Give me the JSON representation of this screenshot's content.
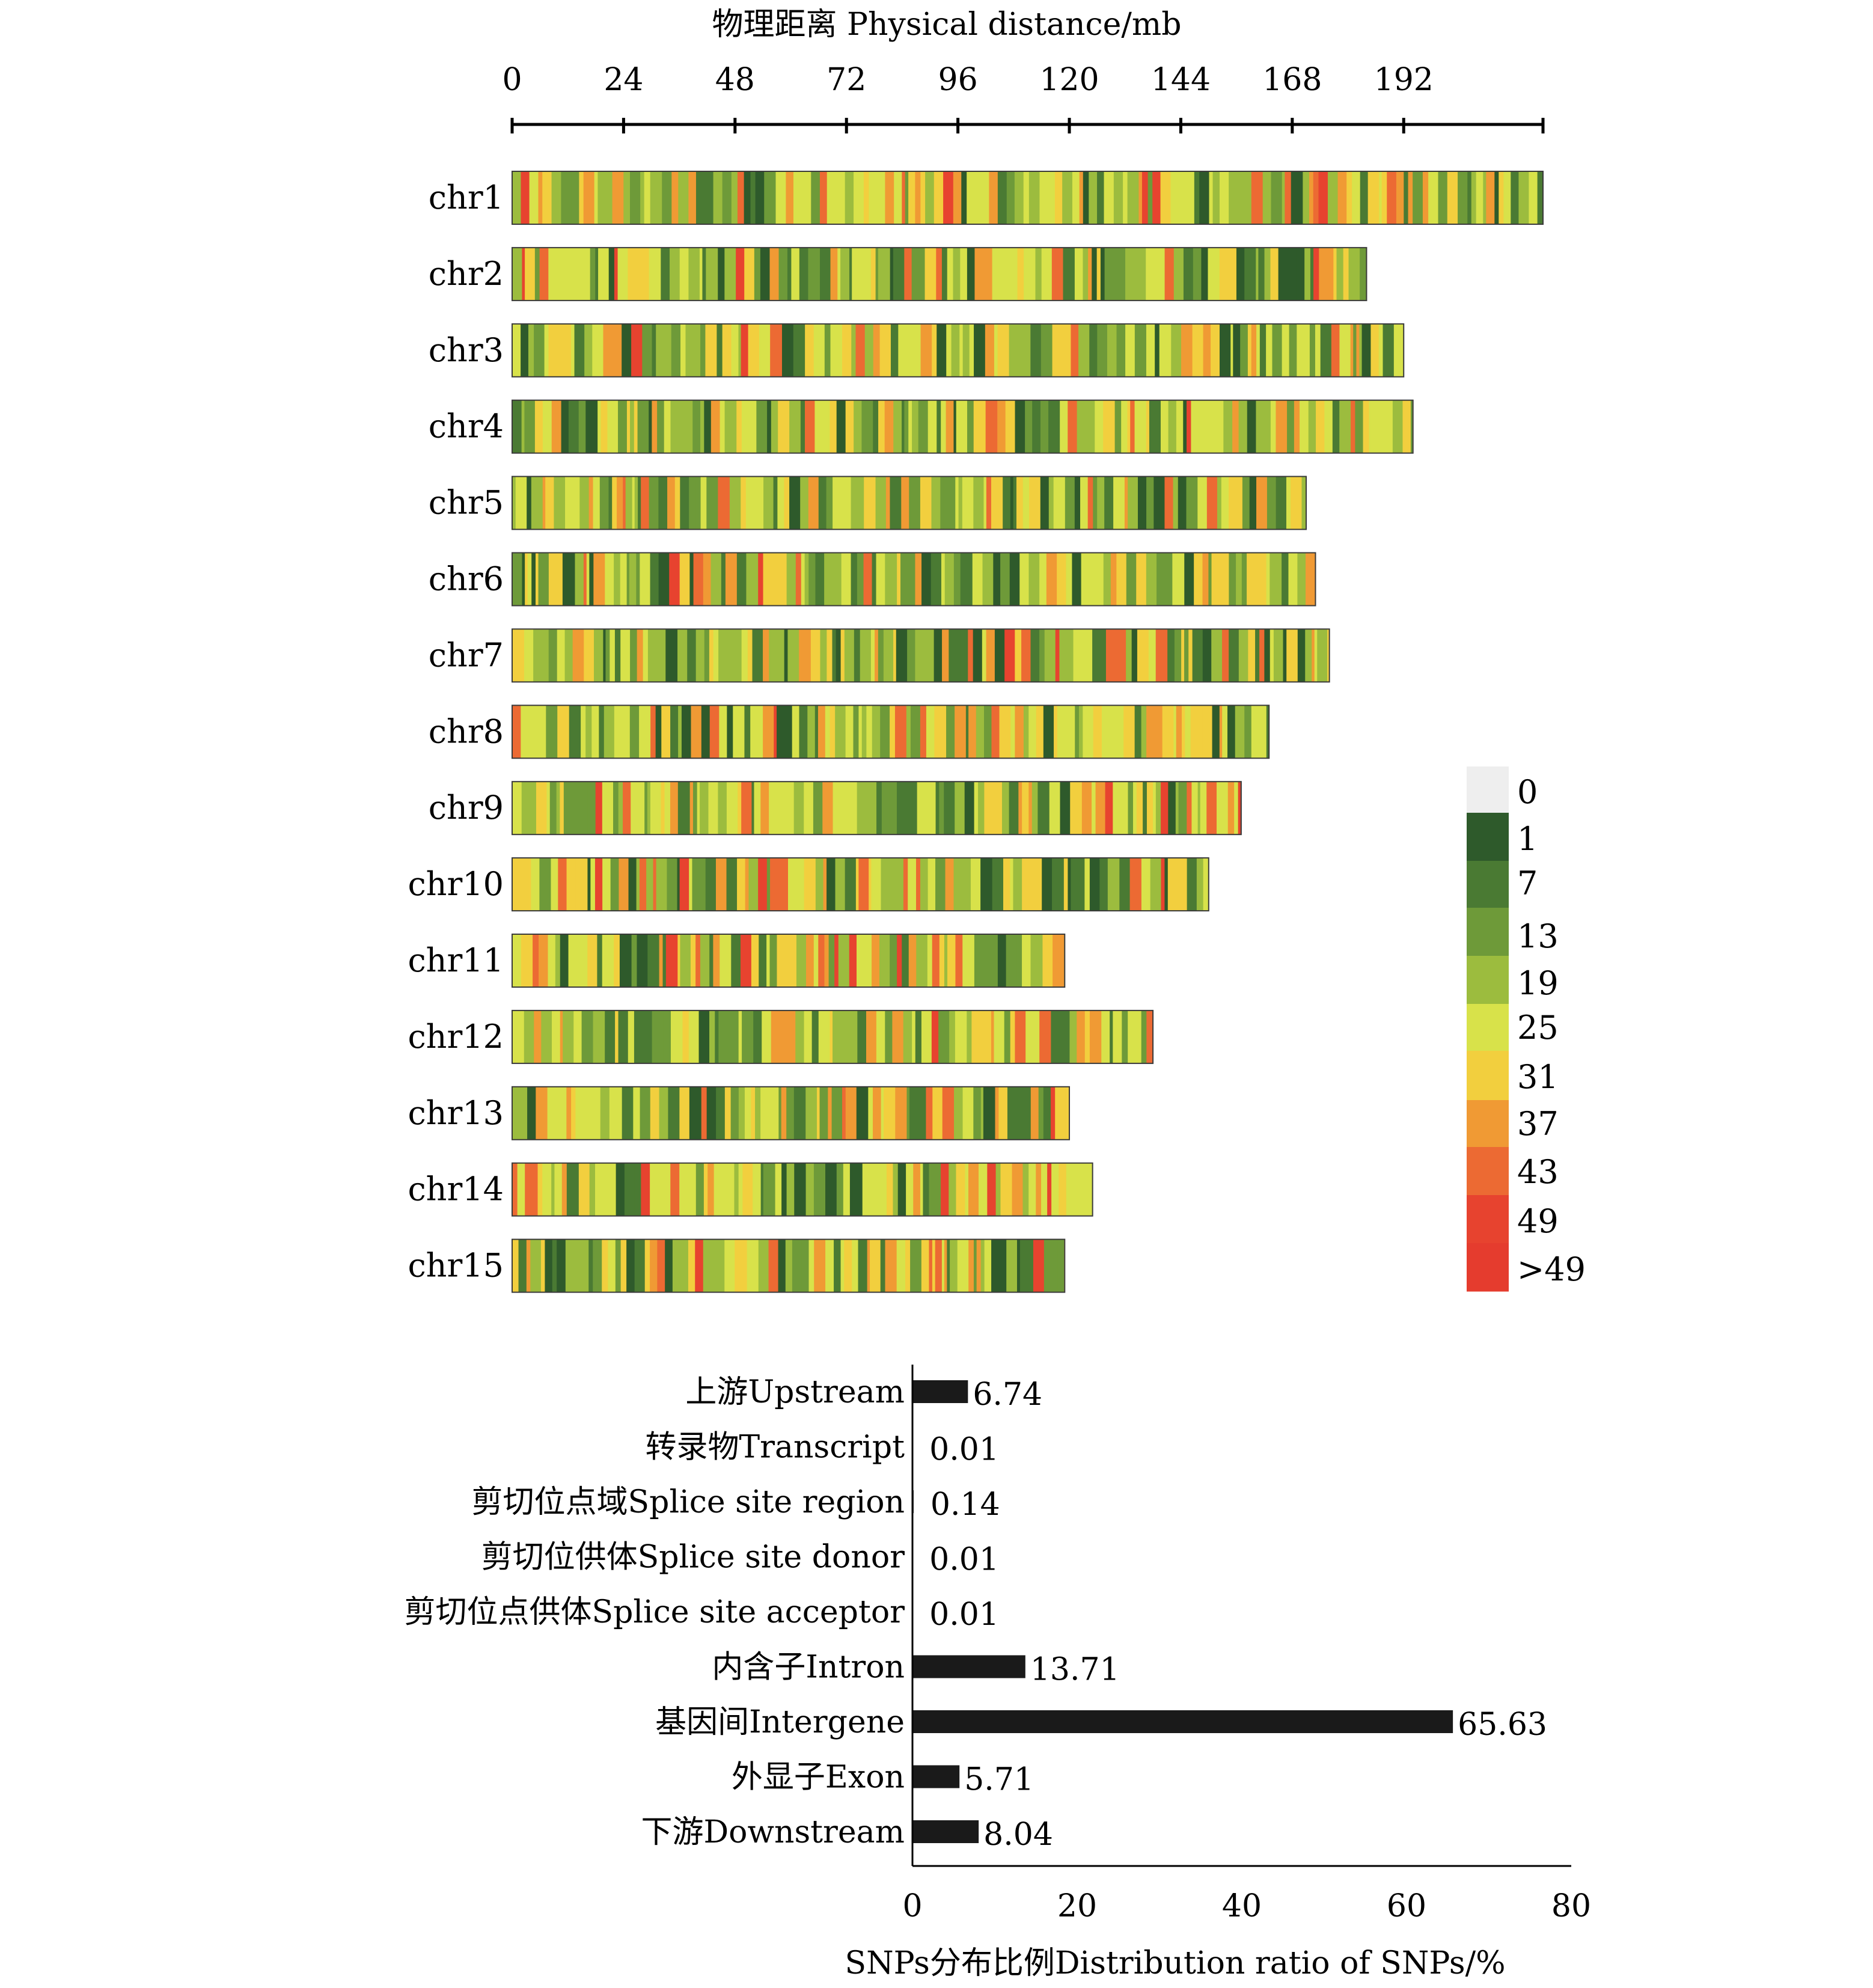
{
  "chart_data": [
    {
      "type": "heatmap",
      "title": "物理距离 Physical distance/mb",
      "xlim": [
        0,
        222
      ],
      "x_ticks": [
        "0",
        "24",
        "48",
        "72",
        "96",
        "120",
        "144",
        "168",
        "192"
      ],
      "x_tick_values": [
        0,
        24,
        48,
        72,
        96,
        120,
        144,
        168,
        192
      ],
      "chromosomes": [
        {
          "name": "chr1",
          "length_mb": 222
        },
        {
          "name": "chr2",
          "length_mb": 184
        },
        {
          "name": "chr3",
          "length_mb": 192
        },
        {
          "name": "chr4",
          "length_mb": 194
        },
        {
          "name": "chr5",
          "length_mb": 171
        },
        {
          "name": "chr6",
          "length_mb": 173
        },
        {
          "name": "chr7",
          "length_mb": 176
        },
        {
          "name": "chr8",
          "length_mb": 163
        },
        {
          "name": "chr9",
          "length_mb": 157
        },
        {
          "name": "chr10",
          "length_mb": 150
        },
        {
          "name": "chr11",
          "length_mb": 119
        },
        {
          "name": "chr12",
          "length_mb": 138
        },
        {
          "name": "chr13",
          "length_mb": 120
        },
        {
          "name": "chr14",
          "length_mb": 125
        },
        {
          "name": "chr15",
          "length_mb": 119
        }
      ],
      "legend": {
        "position": "right",
        "labels": [
          "0",
          "1",
          "7",
          "13",
          "19",
          "25",
          "31",
          "37",
          "43",
          "49",
          ">49"
        ],
        "colors": [
          "#eeeeee",
          "#2e5a2b",
          "#4a7a33",
          "#6e9a39",
          "#9cbc3e",
          "#d8e24a",
          "#f2cf3e",
          "#f09a34",
          "#ec6a33",
          "#e7432f",
          "#e53c2e"
        ]
      }
    },
    {
      "type": "bar",
      "orientation": "horizontal",
      "xlabel": "SNPs分布比例Distribution ratio of SNPs/%",
      "xlim": [
        0,
        80
      ],
      "x_ticks": [
        "0",
        "20",
        "40",
        "60",
        "80"
      ],
      "x_tick_values": [
        0,
        20,
        40,
        60,
        80
      ],
      "categories": [
        "上游Upstream",
        "转录物Transcript",
        "剪切位点域Splice site region",
        "剪切位供体Splice site donor",
        "剪切位点供体Splice site acceptor",
        "内含子Intron",
        "基因间Intergene",
        "外显子Exon",
        "下游Downstream"
      ],
      "values": [
        6.74,
        0.01,
        0.14,
        0.01,
        0.01,
        13.71,
        65.63,
        5.71,
        8.04
      ],
      "value_labels": [
        "6.74",
        "0.01",
        "0.14",
        "0.01",
        "0.01",
        "13.71",
        "65.63",
        "5.71",
        "8.04"
      ],
      "bar_color": "#1a1a1a"
    }
  ]
}
